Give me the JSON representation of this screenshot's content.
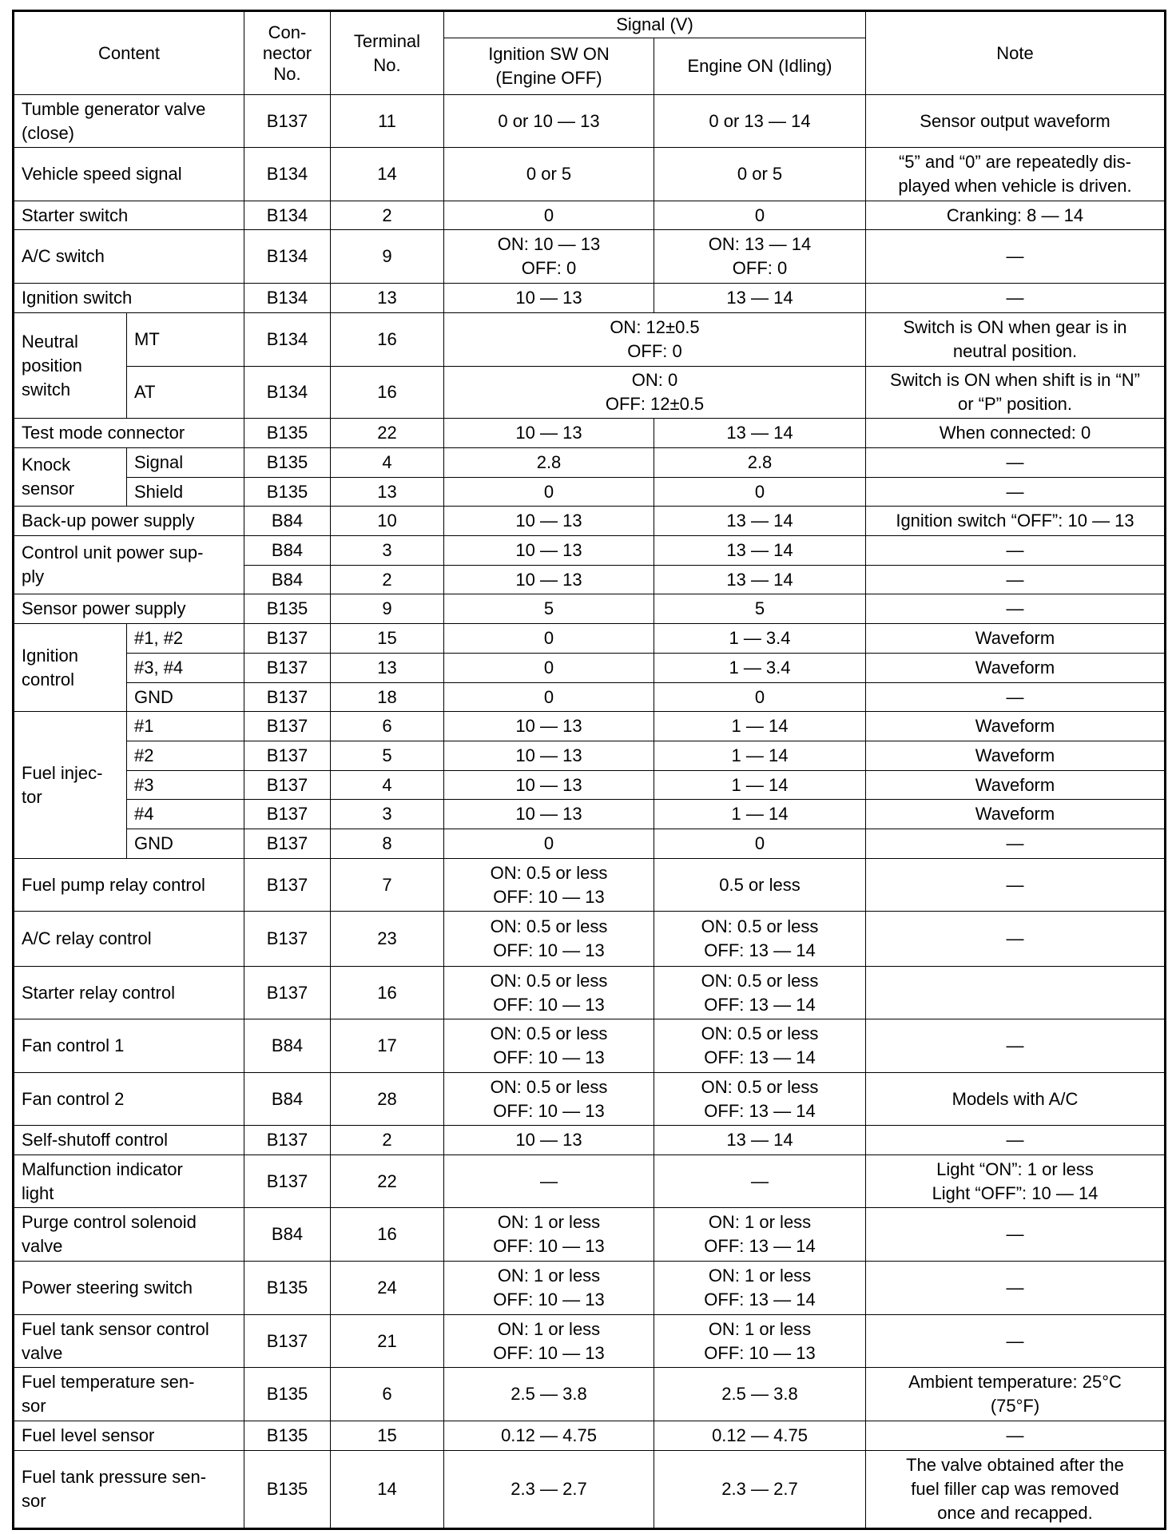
{
  "header": {
    "content": "Content",
    "connector": "Con-\nnector\nNo.",
    "terminal": "Terminal\nNo.",
    "signal": "Signal (V)",
    "ignition_on": "Ignition SW ON\n(Engine OFF)",
    "engine_on": "Engine ON (Idling)",
    "note": "Note"
  },
  "groups": [
    {
      "label": "Tumble generator valve\n(close)",
      "rows": [
        {
          "connector": "B137",
          "terminal": "11",
          "ign": "0 or 10 — 13",
          "eng": "0 or 13 — 14",
          "note": "Sensor output waveform",
          "h": 66
        }
      ]
    },
    {
      "label": "Vehicle speed signal",
      "rows": [
        {
          "connector": "B134",
          "terminal": "14",
          "ign": "0 or 5",
          "eng": "0 or 5",
          "note": "“5” and “0” are repeatedly dis-\nplayed when vehicle is driven.",
          "h": 67
        }
      ]
    },
    {
      "label": "Starter switch",
      "rows": [
        {
          "connector": "B134",
          "terminal": "2",
          "ign": "0",
          "eng": "0",
          "note": "Cranking: 8 — 14",
          "h": 36
        }
      ]
    },
    {
      "label": "A/C switch",
      "rows": [
        {
          "connector": "B134",
          "terminal": "9",
          "ign": "ON: 10 — 13\nOFF: 0",
          "eng": "ON: 13 — 14\nOFF: 0",
          "note": "—",
          "h": 67
        }
      ]
    },
    {
      "label": "Ignition switch",
      "rows": [
        {
          "connector": "B134",
          "terminal": "13",
          "ign": "10 — 13",
          "eng": "13 — 14",
          "note": "—",
          "h": 37
        }
      ]
    },
    {
      "label": "Neutral\nposition\nswitch",
      "rows": [
        {
          "sub": "MT",
          "connector": "B134",
          "terminal": "16",
          "signal": "ON: 12±0.5\nOFF: 0",
          "note": "Switch is ON when gear is in\nneutral position.",
          "h": 67
        },
        {
          "sub": "AT",
          "connector": "B134",
          "terminal": "16",
          "signal": "ON: 0\nOFF: 12±0.5",
          "note": "Switch is ON when shift is in “N”\nor “P” position.",
          "h": 65
        }
      ]
    },
    {
      "label": "Test mode connector",
      "rows": [
        {
          "connector": "B135",
          "terminal": "22",
          "ign": "10 — 13",
          "eng": "13 — 14",
          "note": "When connected: 0",
          "h": 37
        }
      ]
    },
    {
      "label": "Knock\nsensor",
      "rows": [
        {
          "sub": "Signal",
          "connector": "B135",
          "terminal": "4",
          "ign": "2.8",
          "eng": "2.8",
          "note": "—",
          "h": 37
        },
        {
          "sub": "Shield",
          "connector": "B135",
          "terminal": "13",
          "ign": "0",
          "eng": "0",
          "note": "—",
          "h": 36
        }
      ]
    },
    {
      "label": "Back-up power supply",
      "rows": [
        {
          "connector": "B84",
          "terminal": "10",
          "ign": "10 — 13",
          "eng": "13 — 14",
          "note": "Ignition switch “OFF”: 10 — 13",
          "h": 37
        }
      ]
    },
    {
      "label": "Control unit power sup-\nply",
      "rows": [
        {
          "connector": "B84",
          "terminal": "3",
          "ign": "10 — 13",
          "eng": "13 — 14",
          "note": "—",
          "h": 37
        },
        {
          "connector": "B84",
          "terminal": "2",
          "ign": "10 — 13",
          "eng": "13 — 14",
          "note": "—",
          "h": 36
        }
      ]
    },
    {
      "label": "Sensor power supply",
      "rows": [
        {
          "connector": "B135",
          "terminal": "9",
          "ign": "5",
          "eng": "5",
          "note": "—",
          "h": 37
        }
      ]
    },
    {
      "label": "Ignition\ncontrol",
      "rows": [
        {
          "sub": "#1, #2",
          "connector": "B137",
          "terminal": "15",
          "ign": "0",
          "eng": "1 — 3.4",
          "note": "Waveform",
          "h": 37
        },
        {
          "sub": "#3, #4",
          "connector": "B137",
          "terminal": "13",
          "ign": "0",
          "eng": "1 — 3.4",
          "note": "Waveform",
          "h": 37
        },
        {
          "sub": "GND",
          "connector": "B137",
          "terminal": "18",
          "ign": "0",
          "eng": "0",
          "note": "—",
          "h": 36
        }
      ]
    },
    {
      "label": "Fuel injec-\ntor",
      "rows": [
        {
          "sub": "#1",
          "connector": "B137",
          "terminal": "6",
          "ign": "10 — 13",
          "eng": "1 — 14",
          "note": "Waveform",
          "h": 37
        },
        {
          "sub": "#2",
          "connector": "B137",
          "terminal": "5",
          "ign": "10 — 13",
          "eng": "1 — 14",
          "note": "Waveform",
          "h": 37
        },
        {
          "sub": "#3",
          "connector": "B137",
          "terminal": "4",
          "ign": "10 — 13",
          "eng": "1 — 14",
          "note": "Waveform",
          "h": 36
        },
        {
          "sub": "#4",
          "connector": "B137",
          "terminal": "3",
          "ign": "10 — 13",
          "eng": "1 — 14",
          "note": "Waveform",
          "h": 37
        },
        {
          "sub": "GND",
          "connector": "B137",
          "terminal": "8",
          "ign": "0",
          "eng": "0",
          "note": "—",
          "h": 37
        }
      ]
    },
    {
      "label": "Fuel pump relay control",
      "rows": [
        {
          "connector": "B137",
          "terminal": "7",
          "ign": "ON: 0.5 or less\nOFF: 10 — 13",
          "eng": "0.5 or less",
          "note": "—",
          "h": 66
        }
      ]
    },
    {
      "label": "A/C relay control",
      "rows": [
        {
          "connector": "B137",
          "terminal": "23",
          "ign": "ON: 0.5 or less\nOFF: 10 — 13",
          "eng": "ON: 0.5 or less\nOFF: 13 — 14",
          "note": "—",
          "h": 69
        }
      ]
    },
    {
      "label": "Starter relay control",
      "rows": [
        {
          "connector": "B137",
          "terminal": "16",
          "ign": "ON: 0.5 or less\nOFF: 10 — 13",
          "eng": "ON: 0.5 or less\nOFF: 13 — 14",
          "note": "",
          "h": 66
        }
      ]
    },
    {
      "label": "Fan control 1",
      "rows": [
        {
          "connector": "B84",
          "terminal": "17",
          "ign": "ON: 0.5 or less\nOFF: 10 — 13",
          "eng": "ON: 0.5 or less\nOFF: 13 — 14",
          "note": "—",
          "h": 67
        }
      ]
    },
    {
      "label": "Fan control 2",
      "rows": [
        {
          "connector": "B84",
          "terminal": "28",
          "ign": "ON: 0.5 or less\nOFF: 10 — 13",
          "eng": "ON: 0.5 or less\nOFF: 13 — 14",
          "note": "Models with A/C",
          "h": 66
        }
      ]
    },
    {
      "label": "Self-shutoff control",
      "rows": [
        {
          "connector": "B137",
          "terminal": "2",
          "ign": "10 — 13",
          "eng": "13 — 14",
          "note": "—",
          "h": 37
        }
      ]
    },
    {
      "label": "Malfunction indicator\nlight",
      "rows": [
        {
          "connector": "B137",
          "terminal": "22",
          "ign": "—",
          "eng": "—",
          "note": "Light “ON”: 1 or less\nLight “OFF”: 10 — 14",
          "h": 66
        }
      ]
    },
    {
      "label": "Purge control solenoid\nvalve",
      "rows": [
        {
          "connector": "B84",
          "terminal": "16",
          "ign": "ON: 1 or less\nOFF: 10 — 13",
          "eng": "ON: 1 or less\nOFF: 13 — 14",
          "note": "—",
          "h": 67
        }
      ]
    },
    {
      "label": "Power steering switch",
      "rows": [
        {
          "connector": "B135",
          "terminal": "24",
          "ign": "ON: 1 or less\nOFF: 10 — 13",
          "eng": "ON: 1 or less\nOFF: 13 — 14",
          "note": "—",
          "h": 67
        }
      ]
    },
    {
      "label": "Fuel tank sensor control\nvalve",
      "rows": [
        {
          "connector": "B137",
          "terminal": "21",
          "ign": "ON: 1 or less\nOFF: 10 — 13",
          "eng": "ON: 1 or less\nOFF: 10 — 13",
          "note": "—",
          "h": 66
        }
      ]
    },
    {
      "label": "Fuel temperature sen-\nsor",
      "rows": [
        {
          "connector": "B135",
          "terminal": "6",
          "ign": "2.5 — 3.8",
          "eng": "2.5 — 3.8",
          "note": "Ambient temperature: 25°C\n(75°F)",
          "h": 67
        }
      ]
    },
    {
      "label": "Fuel level sensor",
      "rows": [
        {
          "connector": "B135",
          "terminal": "15",
          "ign": "0.12 — 4.75",
          "eng": "0.12 — 4.75",
          "note": "—",
          "h": 37
        }
      ]
    },
    {
      "label": "Fuel tank pressure sen-\nsor",
      "rows": [
        {
          "connector": "B135",
          "terminal": "14",
          "ign": "2.3 — 2.7",
          "eng": "2.3 — 2.7",
          "note": "The valve obtained after the\nfuel filler cap was removed\nonce and recapped.",
          "h": 98
        }
      ]
    }
  ]
}
